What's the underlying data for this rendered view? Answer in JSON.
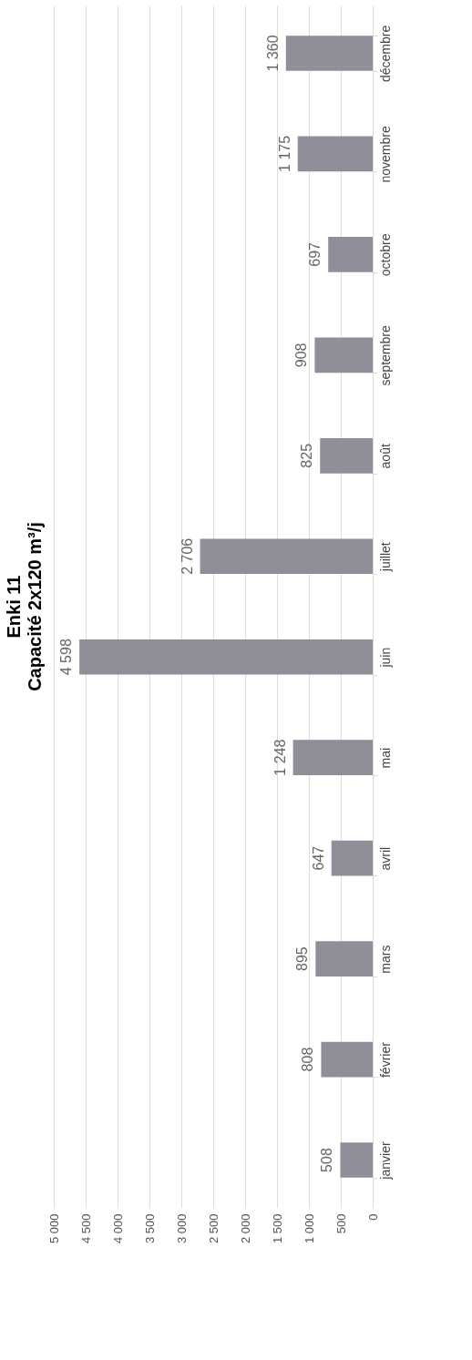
{
  "chart_data": {
    "type": "bar",
    "orientation": "horizontal",
    "title": "Enki 11",
    "subtitle": "Capacité 2x120 m³/j",
    "categories": [
      "décembre",
      "novembre",
      "octobre",
      "septembre",
      "août",
      "juillet",
      "juin",
      "mai",
      "avril",
      "mars",
      "février",
      "janvier"
    ],
    "values": [
      1360,
      1175,
      697,
      908,
      825,
      2706,
      4598,
      1248,
      647,
      895,
      808,
      508
    ],
    "value_labels": [
      "1 360",
      "1 175",
      "697",
      "908",
      "825",
      "2 706",
      "4 598",
      "1 248",
      "647",
      "895",
      "808",
      "508"
    ],
    "color": "#8e8f98",
    "xlim": [
      5000,
      0
    ],
    "xticks": [
      {
        "value": 5000,
        "label": "5 000"
      },
      {
        "value": 4500,
        "label": "4 500"
      },
      {
        "value": 4000,
        "label": "4 000"
      },
      {
        "value": 3500,
        "label": "3 500"
      },
      {
        "value": 3000,
        "label": "3 000"
      },
      {
        "value": 2500,
        "label": "2 500"
      },
      {
        "value": 2000,
        "label": "2 000"
      },
      {
        "value": 1500,
        "label": "1 500"
      },
      {
        "value": 1000,
        "label": "1 000"
      },
      500,
      0
    ],
    "grid": "x"
  }
}
